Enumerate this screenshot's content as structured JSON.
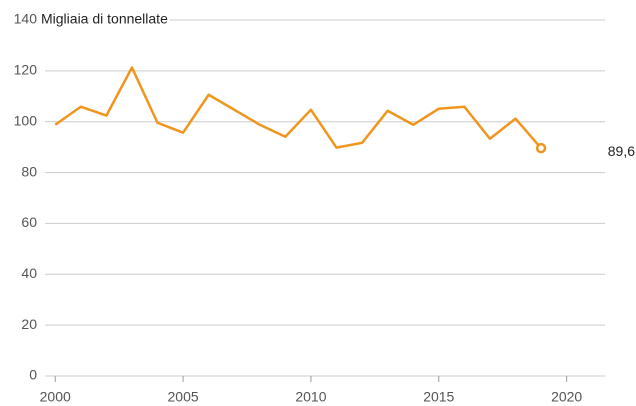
{
  "chart_data": {
    "type": "line",
    "y_label": "Migliaia di tonnellate",
    "x": [
      2000,
      2001,
      2002,
      2003,
      2004,
      2005,
      2006,
      2007,
      2008,
      2009,
      2010,
      2011,
      2012,
      2013,
      2014,
      2015,
      2016,
      2017,
      2018,
      2019
    ],
    "series": [
      {
        "name": null,
        "color": "#f0961e",
        "values": [
          98.8,
          105.9,
          102.4,
          121.3,
          99.6,
          95.7,
          110.6,
          104.7,
          98.8,
          94.1,
          104.7,
          89.8,
          91.7,
          104.3,
          98.8,
          105.1,
          105.9,
          93.3,
          101.2,
          89.6
        ],
        "value_labels": [
          null,
          null,
          null,
          null,
          null,
          null,
          null,
          null,
          null,
          null,
          null,
          null,
          null,
          null,
          null,
          null,
          null,
          null,
          null,
          "89,6"
        ]
      }
    ],
    "xlim": [
      1999.6,
      2021.5
    ],
    "xticks": [
      2000,
      2005,
      2010,
      2015,
      2020
    ],
    "ylim": [
      0,
      140
    ],
    "yticks": [
      0,
      20,
      40,
      60,
      80,
      100,
      120,
      140
    ],
    "grid": true
  }
}
